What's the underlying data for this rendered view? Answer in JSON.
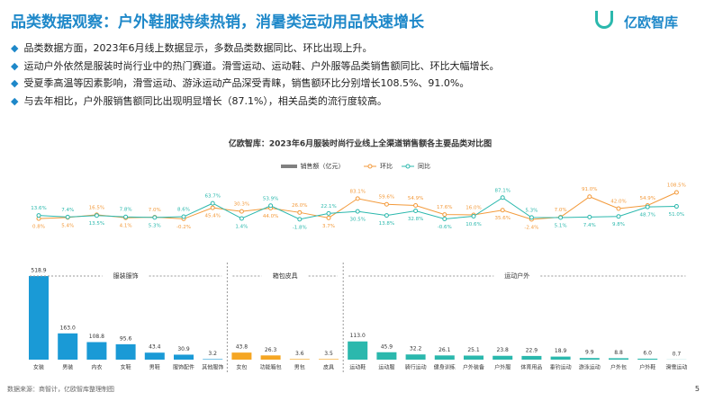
{
  "header": {
    "title": "品类数据观察：户外鞋服持续热销，消暑类运动用品快速增长",
    "logo": "亿欧智库"
  },
  "bullets": [
    "品类数据方面，2023年6月线上数据显示，多数品类数据同比、环比出现上升。",
    "运动户外依然是服装时尚行业中的热门赛道。滑雪运动、运动鞋、户外服等品类销售额同比、环比大幅增长。",
    "受夏季高温等因素影响，滑雪运动、游泳运动产品深受青睐，销售额环比分别增长108.5%、91.0%。",
    "与去年相比，户外服销售额同比出现明显增长（87.1%），相关品类的流行度较高。"
  ],
  "chart_data": {
    "type": "bar-line",
    "title": "亿欧智库：2023年6月服装时尚行业线上全渠道销售额各主要品类对比图",
    "bar_name": "销售额（亿元）",
    "bar_legend_color": "#808080",
    "groups": [
      {
        "name": "服装服饰",
        "color": "#1a9ad6",
        "categories": [
          "女装",
          "男装",
          "内衣",
          "女鞋",
          "男鞋",
          "服饰配件",
          "其他服饰"
        ],
        "values": [
          518.9,
          163.0,
          108.8,
          95.6,
          43.4,
          30.9,
          3.2
        ],
        "value_labels": [
          "518.9",
          "163.0",
          "108.8",
          "95.6",
          "43.4",
          "30.9",
          "3.2"
        ]
      },
      {
        "name": "箱包皮具",
        "color": "#f5a623",
        "categories": [
          "女包",
          "功能箱包",
          "男包",
          "皮具"
        ],
        "values": [
          43.8,
          26.3,
          3.6,
          3.5
        ],
        "value_labels": [
          "43.8",
          "26.3",
          "3.6",
          "3.5"
        ]
      },
      {
        "name": "运动户外",
        "color": "#2bb8ad",
        "categories": [
          "运动鞋",
          "运动服",
          "骑行运动",
          "健身训练",
          "户外装备",
          "户外服",
          "体育用品",
          "垂钓运动",
          "游泳运动",
          "户外包",
          "户外鞋",
          "滑雪运动"
        ],
        "values": [
          113.0,
          45.9,
          32.2,
          26.1,
          25.1,
          23.8,
          22.9,
          18.9,
          9.9,
          8.8,
          6.0,
          0.7
        ],
        "value_labels": [
          "113.0",
          "45.9",
          "32.2",
          "26.1",
          "25.1",
          "23.8",
          "22.9",
          "18.9",
          "9.9",
          "8.8",
          "6.0",
          "0.7"
        ]
      }
    ],
    "series": [
      {
        "name": "环比",
        "color": "#f39a3b",
        "values": [
          0.8,
          5.4,
          16.5,
          4.1,
          7.0,
          -0.2,
          45.4,
          30.3,
          44.0,
          26.0,
          3.7,
          83.1,
          59.6,
          54.9,
          17.6,
          16.0,
          35.6,
          -2.4,
          7.0,
          91.0,
          42.0,
          54.9,
          108.5
        ],
        "value_labels": [
          "0.8%",
          "5.4%",
          "16.5%",
          "4.1%",
          "7.0%",
          "-0.2%",
          "45.4%",
          "30.3%",
          "44.0%",
          "26.0%",
          "3.7%",
          "83.1%",
          "59.6%",
          "54.9%",
          "17.6%",
          "16.0%",
          "35.6%",
          "-2.4%",
          "7.0%",
          "91.0%",
          "42.0%",
          "54.9%",
          "108.5%"
        ]
      },
      {
        "name": "同比",
        "color": "#2bb8ad",
        "values": [
          13.6,
          7.4,
          13.5,
          7.8,
          5.3,
          8.6,
          63.7,
          1.4,
          53.9,
          -1.8,
          22.1,
          30.5,
          13.8,
          32.8,
          -0.6,
          10.6,
          87.1,
          5.3,
          5.1,
          7.4,
          9.8,
          48.7,
          51.0
        ],
        "value_labels": [
          "13.6%",
          "7.4%",
          "13.5%",
          "7.8%",
          "5.3%",
          "8.6%",
          "63.7%",
          "1.4%",
          "53.9%",
          "-1.8%",
          "22.1%",
          "30.5%",
          "13.8%",
          "32.8%",
          "-0.6%",
          "10.6%",
          "87.1%",
          "5.3%",
          "5.1%",
          "7.4%",
          "9.8%",
          "48.7%",
          "51.0%"
        ]
      }
    ]
  },
  "footer": {
    "source": "数据来源：商智计，亿欧智库整理制图",
    "page": "5"
  }
}
